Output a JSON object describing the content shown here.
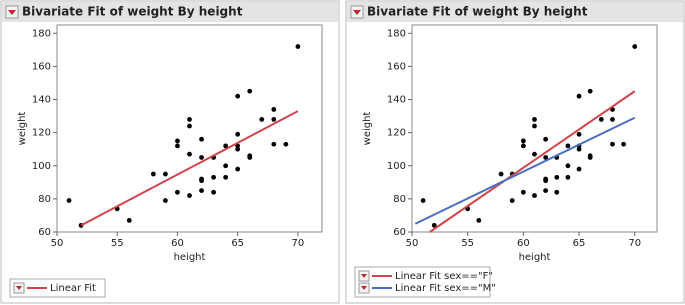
{
  "chart_data": [
    {
      "type": "scatter",
      "title": "Bivariate Fit of weight By height",
      "x_label": "height",
      "y_label": "weight",
      "xlim": [
        50,
        72
      ],
      "ylim": [
        60,
        185
      ],
      "xticks": [
        50,
        55,
        60,
        65,
        70
      ],
      "yticks": [
        60,
        80,
        100,
        120,
        140,
        160,
        180
      ],
      "color": "#000000",
      "x": [
        70,
        51,
        52,
        55,
        56,
        58,
        59,
        59,
        60,
        60,
        60,
        61,
        61,
        61,
        61,
        62,
        62,
        62,
        62,
        62,
        63,
        63,
        63,
        64,
        64,
        64,
        65,
        65,
        65,
        65,
        65,
        66,
        66,
        66,
        67,
        68,
        68,
        68,
        69
      ],
      "values": [
        172,
        79,
        64,
        74,
        67,
        95,
        95,
        79,
        115,
        112,
        84,
        128,
        124,
        107,
        82,
        116,
        105,
        92,
        91,
        85,
        105,
        93,
        84,
        112,
        100,
        93,
        142,
        119,
        112,
        110,
        98,
        145,
        106,
        105,
        128,
        134,
        128,
        113,
        113
      ],
      "fits": [
        {
          "name": "Linear Fit",
          "color": "#d0454c",
          "x": [
            52,
            70
          ],
          "values": [
            64,
            133
          ]
        }
      ]
    },
    {
      "type": "scatter",
      "title": "Bivariate Fit of weight By height",
      "x_label": "height",
      "y_label": "weight",
      "xlim": [
        50,
        72
      ],
      "ylim": [
        60,
        185
      ],
      "xticks": [
        50,
        55,
        60,
        65,
        70
      ],
      "yticks": [
        60,
        80,
        100,
        120,
        140,
        160,
        180
      ],
      "color": "#000000",
      "x": [
        70,
        51,
        52,
        55,
        56,
        58,
        59,
        59,
        60,
        60,
        60,
        61,
        61,
        61,
        61,
        62,
        62,
        62,
        62,
        62,
        63,
        63,
        63,
        64,
        64,
        64,
        65,
        65,
        65,
        65,
        65,
        66,
        66,
        66,
        67,
        68,
        68,
        68,
        69
      ],
      "values": [
        172,
        79,
        64,
        74,
        67,
        95,
        95,
        79,
        115,
        112,
        84,
        128,
        124,
        107,
        82,
        116,
        105,
        92,
        91,
        85,
        105,
        93,
        84,
        112,
        100,
        93,
        142,
        119,
        112,
        110,
        98,
        145,
        106,
        105,
        128,
        134,
        128,
        113,
        113
      ],
      "fits": [
        {
          "name": "Linear Fit sex==\"F\"",
          "color": "#d0454c",
          "x": [
            51.6,
            70
          ],
          "values": [
            60,
            145
          ]
        },
        {
          "name": "Linear Fit sex==\"M\"",
          "color": "#4a6fc4",
          "x": [
            50.3,
            70
          ],
          "values": [
            65,
            129
          ]
        }
      ]
    }
  ]
}
